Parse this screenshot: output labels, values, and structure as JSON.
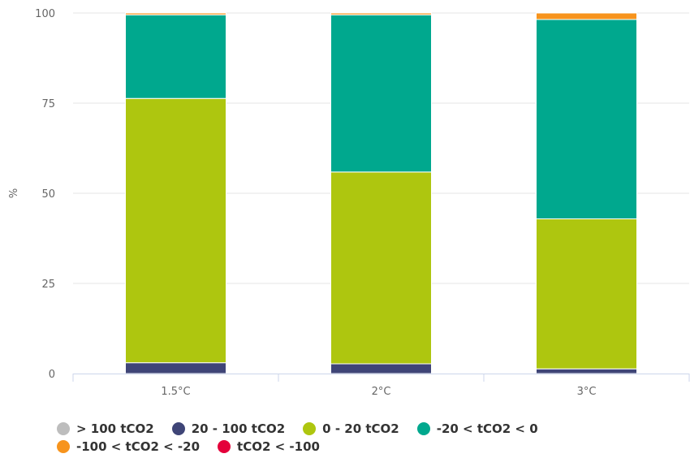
{
  "chart_data": {
    "type": "bar",
    "stacked": true,
    "ylabel": "%",
    "xlabel": "",
    "ylim": [
      0,
      100
    ],
    "yticks": [
      0,
      25,
      50,
      75,
      100
    ],
    "grid": true,
    "legend_position": "bottom",
    "categories": [
      "1.5°C",
      "2°C",
      "3°C"
    ],
    "series": [
      {
        "name": "> 100 tCO2",
        "color": "#bdbdbd",
        "values": [
          0,
          0,
          0
        ]
      },
      {
        "name": "20 - 100 tCO2",
        "color": "#3f4577",
        "values": [
          3,
          2.7,
          1.3
        ]
      },
      {
        "name": "0 - 20 tCO2",
        "color": "#aec60f",
        "values": [
          73.3,
          53.2,
          41.6
        ]
      },
      {
        "name": "-20 < tCO2 < 0",
        "color": "#00a88e",
        "values": [
          23.2,
          43.6,
          55.3
        ]
      },
      {
        "name": "-100 < tCO2 < -20",
        "color": "#f7941d",
        "values": [
          0.5,
          0.5,
          1.8
        ]
      },
      {
        "name": "tCO2 < -100",
        "color": "#e4003a",
        "values": [
          0,
          0,
          0
        ]
      }
    ]
  }
}
